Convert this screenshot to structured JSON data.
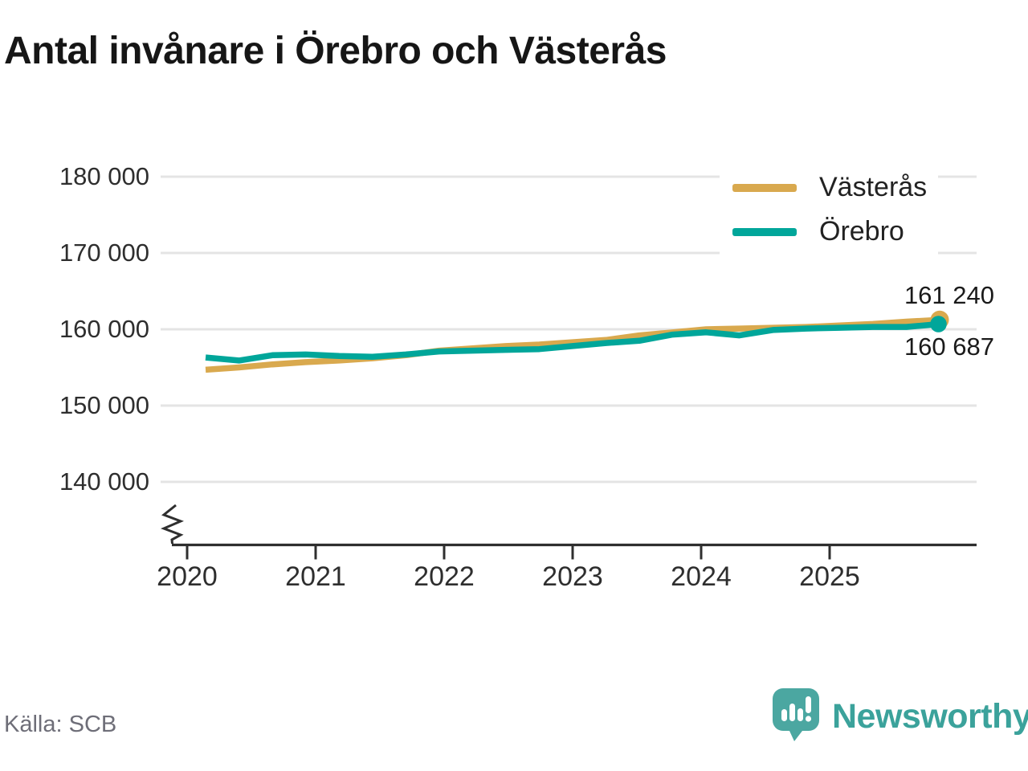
{
  "title": "Antal invånare i Örebro och Västerås",
  "source": "Källa: SCB",
  "branding": {
    "name": "Newsworthy",
    "brand_color": "#3ba29b",
    "icon_color": "#4ba7a1"
  },
  "colors": {
    "grid": "#e4e4e4",
    "axis": "#2f2f2f",
    "title_text": "#161616",
    "tick_text": "#2e2e2e",
    "muted_text": "#6e6e78",
    "vasteras": "#d9a94e",
    "orebro": "#00a69a"
  },
  "end_labels": {
    "vasteras": "161 240",
    "orebro": "160 687"
  },
  "chart_data": {
    "type": "line",
    "title": "Antal invånare i Örebro och Västerås",
    "source": "Källa: SCB",
    "xlabel": "",
    "ylabel": "",
    "grid": "horizontal",
    "legend_position": "top-right",
    "axis_break": true,
    "x_tick_labels": [
      "2020",
      "2021",
      "2022",
      "2023",
      "2024",
      "2025"
    ],
    "y_ticks": [
      180000,
      170000,
      160000,
      150000,
      140000
    ],
    "y_tick_labels": [
      "180 000",
      "170 000",
      "160 000",
      "150 000",
      "140 000"
    ],
    "ylim_display": [
      136000,
      183000
    ],
    "x": [
      2020,
      2020.25,
      2020.5,
      2020.75,
      2021,
      2021.25,
      2021.5,
      2021.75,
      2022,
      2022.25,
      2022.5,
      2022.75,
      2023,
      2023.25,
      2023.5,
      2023.75,
      2024,
      2024.25,
      2024.5,
      2024.75,
      2025,
      2025.25,
      2025.5
    ],
    "series": [
      {
        "name": "Västerås",
        "color": "#d9a94e",
        "end_value": 161240,
        "end_label": "161 240",
        "values": [
          154700,
          155000,
          155400,
          155700,
          155900,
          156200,
          156600,
          157200,
          157500,
          157800,
          158000,
          158300,
          158600,
          159200,
          159600,
          160000,
          160100,
          160200,
          160300,
          160500,
          160700,
          161000,
          161240
        ]
      },
      {
        "name": "Örebro",
        "color": "#00a69a",
        "end_value": 160687,
        "end_label": "160 687",
        "values": [
          156300,
          155900,
          156600,
          156700,
          156500,
          156400,
          156700,
          157100,
          157200,
          157300,
          157400,
          157800,
          158200,
          158500,
          159300,
          159600,
          159200,
          159900,
          160100,
          160200,
          160300,
          160300,
          160687
        ]
      }
    ]
  }
}
